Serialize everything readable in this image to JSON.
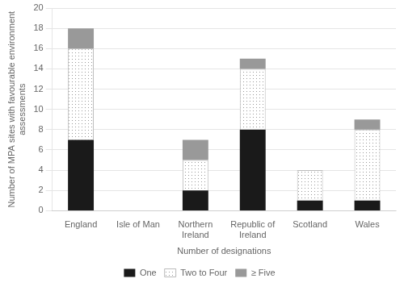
{
  "chart_data": {
    "type": "bar",
    "categories": [
      "England",
      "Isle of Man",
      "Northern\nIreland",
      "Republic of\nIreland",
      "Scotland",
      "Wales"
    ],
    "series": [
      {
        "name": "One",
        "color": "#1a1a1a",
        "values": [
          7,
          0,
          2,
          8,
          1,
          1
        ]
      },
      {
        "name": "Two to Four",
        "color": "#ffffff",
        "values": [
          9,
          0,
          3,
          6,
          3,
          7
        ]
      },
      {
        "name": "≥ Five",
        "color": "#999999",
        "values": [
          2,
          0,
          2,
          1,
          0,
          1
        ]
      }
    ],
    "stacked": true,
    "y_label": "Number of MPA sites with favourable environment\nassessments",
    "x_label": "Number of designations",
    "ylim": [
      0,
      20
    ],
    "yticks": [
      0,
      2,
      4,
      6,
      8,
      10,
      12,
      14,
      16,
      18,
      20
    ],
    "grid": true,
    "legend": "bottom"
  }
}
